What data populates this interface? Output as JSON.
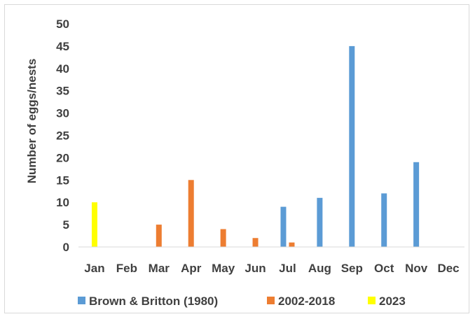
{
  "chart_data": {
    "type": "bar",
    "title": "",
    "xlabel": "",
    "ylabel": "Number of eggs/nests",
    "ylim": [
      0,
      50
    ],
    "yticks": [
      0,
      5,
      10,
      15,
      20,
      25,
      30,
      35,
      40,
      45,
      50
    ],
    "grid": false,
    "legend_position": "bottom",
    "categories": [
      "Jan",
      "Feb",
      "Mar",
      "Apr",
      "May",
      "Jun",
      "Jul",
      "Aug",
      "Sep",
      "Oct",
      "Nov",
      "Dec"
    ],
    "series": [
      {
        "name": "Brown & Britton (1980)",
        "color": "#5b9bd5",
        "values": [
          null,
          null,
          null,
          null,
          null,
          null,
          9,
          11,
          45,
          12,
          19,
          null
        ]
      },
      {
        "name": "2002-2018",
        "color": "#ed7d31",
        "values": [
          null,
          null,
          5,
          15,
          4,
          2,
          1,
          null,
          null,
          null,
          null,
          null
        ]
      },
      {
        "name": "2023",
        "color": "#ffff00",
        "values": [
          10,
          null,
          null,
          null,
          null,
          null,
          null,
          null,
          null,
          null,
          null,
          null
        ]
      }
    ]
  }
}
